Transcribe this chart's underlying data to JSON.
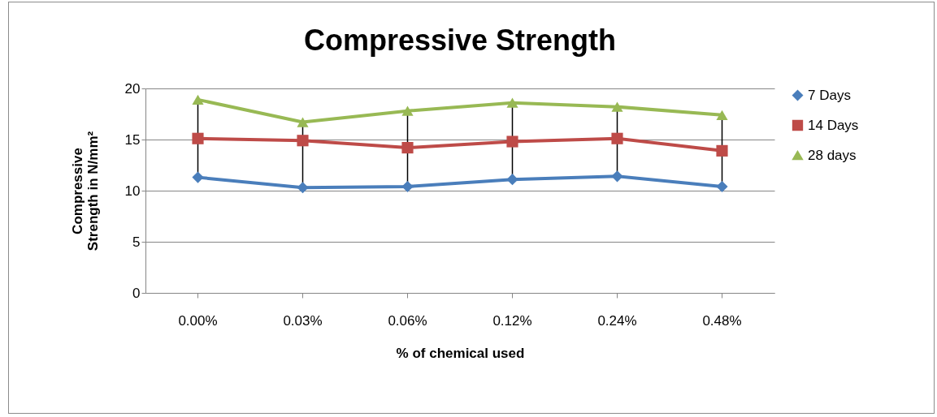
{
  "chart_data": {
    "type": "line",
    "title": "Compressive Strength",
    "xlabel": "% of chemical used",
    "ylabel": "Compressive Strength in N/mm²",
    "categories": [
      "0.00%",
      "0.03%",
      "0.06%",
      "0.12%",
      "0.24%",
      "0.48%"
    ],
    "series": [
      {
        "name": "7 Days",
        "color": "#4a7ebb",
        "marker": "diamond",
        "values": [
          11.3,
          10.3,
          10.4,
          11.1,
          11.4,
          10.4
        ]
      },
      {
        "name": "14 Days",
        "color": "#be4b48",
        "marker": "square",
        "values": [
          15.1,
          14.9,
          14.2,
          14.8,
          15.1,
          13.9
        ]
      },
      {
        "name": "28 days",
        "color": "#98b954",
        "marker": "triangle",
        "values": [
          18.9,
          16.7,
          17.8,
          18.6,
          18.2,
          17.4
        ]
      }
    ],
    "ylim": [
      0,
      20
    ],
    "yticks": [
      0,
      5,
      10,
      15,
      20
    ],
    "grid": "y",
    "legend": "right"
  }
}
